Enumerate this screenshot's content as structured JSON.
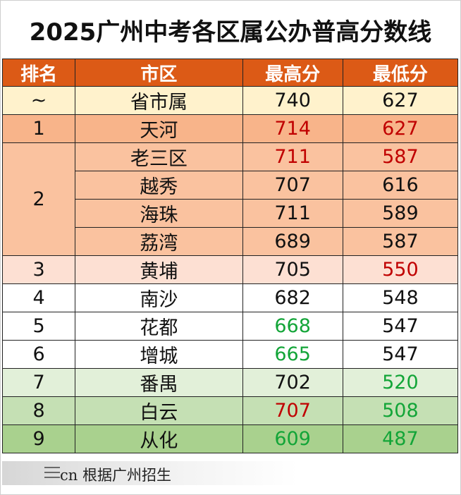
{
  "title": "2025广州中考各区属公办普高分数线",
  "colors": {
    "header_bg": "#dc5a16",
    "red_text": "#c00000",
    "green_text": "#13a538",
    "black_text": "#111111"
  },
  "headers": [
    "排名",
    "市区",
    "最高分",
    "最低分"
  ],
  "rows": [
    {
      "rank": "~",
      "district": "省市属",
      "max": "740",
      "min": "627",
      "bg": "#fff2cc",
      "max_color": "#111111",
      "min_color": "#111111"
    },
    {
      "rank": "1",
      "district": "天河",
      "max": "714",
      "min": "627",
      "bg": "#f8b48a",
      "max_color": "#c00000",
      "min_color": "#c00000"
    },
    {
      "rank": "",
      "district": "老三区",
      "max": "711",
      "min": "587",
      "bg": "#fac29f",
      "max_color": "#c00000",
      "min_color": "#c00000"
    },
    {
      "rank": "",
      "district": "越秀",
      "max": "707",
      "min": "616",
      "bg": "#fac29f",
      "max_color": "#111111",
      "min_color": "#111111"
    },
    {
      "rank": "",
      "district": "海珠",
      "max": "711",
      "min": "589",
      "bg": "#fac29f",
      "max_color": "#111111",
      "min_color": "#111111"
    },
    {
      "rank": "",
      "district": "荔湾",
      "max": "689",
      "min": "587",
      "bg": "#fac29f",
      "max_color": "#111111",
      "min_color": "#111111"
    },
    {
      "rank": "3",
      "district": "黄埔",
      "max": "705",
      "min": "550",
      "bg": "#fde0d3",
      "max_color": "#111111",
      "min_color": "#c00000"
    },
    {
      "rank": "4",
      "district": "南沙",
      "max": "682",
      "min": "548",
      "bg": "#ffffff",
      "max_color": "#111111",
      "min_color": "#111111"
    },
    {
      "rank": "5",
      "district": "花都",
      "max": "668",
      "min": "547",
      "bg": "#ffffff",
      "max_color": "#13a538",
      "min_color": "#111111"
    },
    {
      "rank": "6",
      "district": "增城",
      "max": "665",
      "min": "547",
      "bg": "#ffffff",
      "max_color": "#13a538",
      "min_color": "#111111"
    },
    {
      "rank": "7",
      "district": "番禺",
      "max": "702",
      "min": "520",
      "bg": "#e2f0d9",
      "max_color": "#111111",
      "min_color": "#13a538"
    },
    {
      "rank": "8",
      "district": "白云",
      "max": "707",
      "min": "508",
      "bg": "#c5e0b4",
      "max_color": "#c00000",
      "min_color": "#13a538"
    },
    {
      "rank": "9",
      "district": "从化",
      "max": "609",
      "min": "487",
      "bg": "#a9d18e",
      "max_color": "#13a538",
      "min_color": "#13a538"
    }
  ],
  "group_rank": {
    "label": "2",
    "bg": "#fac29f"
  },
  "footer": {
    "text": "cn 根据广州招生"
  }
}
